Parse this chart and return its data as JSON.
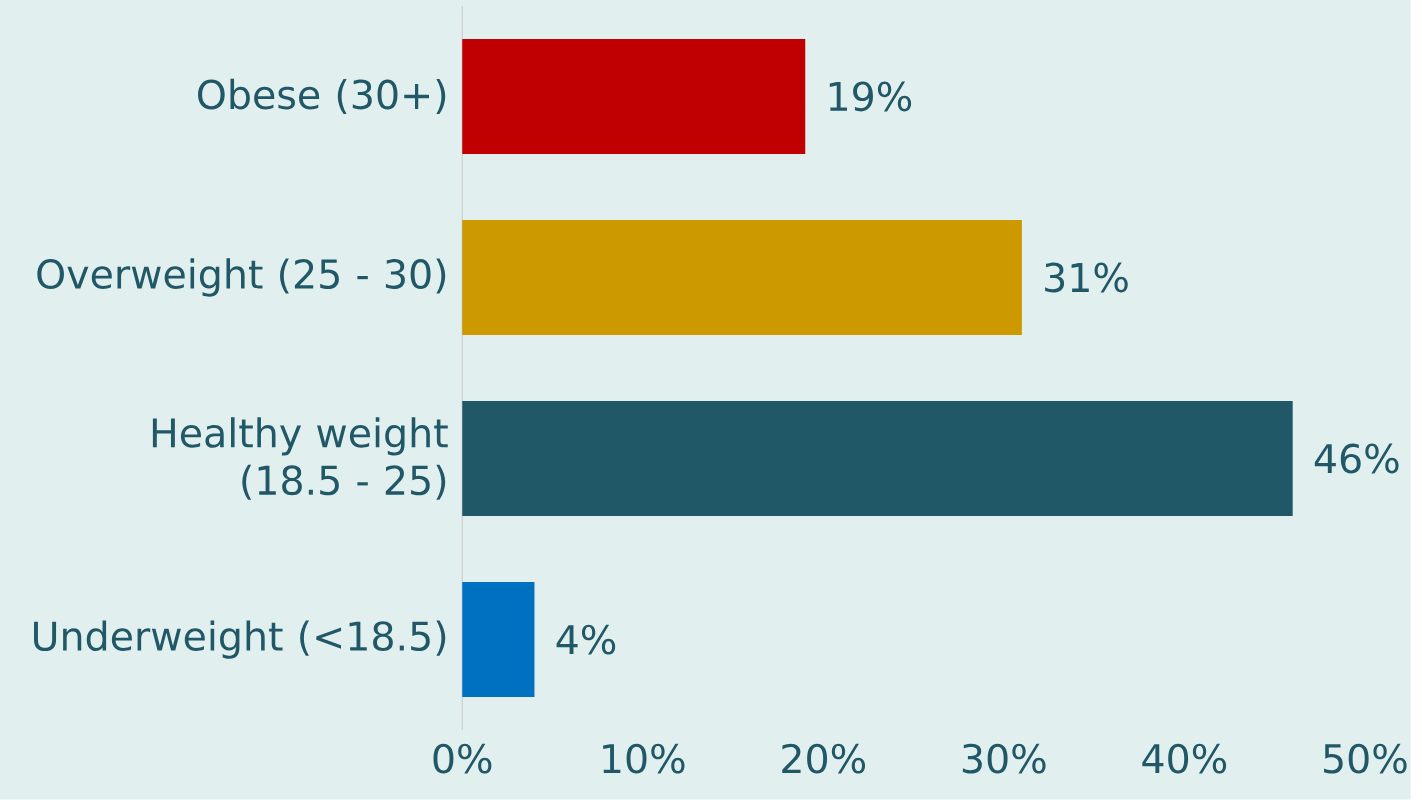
{
  "chart_data": {
    "type": "bar",
    "orientation": "horizontal",
    "categories": [
      "Obese (30+)",
      "Overweight (25 - 30)",
      "Healthy weight (18.5 - 25)",
      "Underweight (<18.5)"
    ],
    "values": [
      19,
      31,
      46,
      4
    ],
    "colors": [
      "#c00000",
      "#cc9900",
      "#215868",
      "#0070c0"
    ],
    "value_labels": [
      "19%",
      "31%",
      "46%",
      "4%"
    ],
    "xlim": [
      0,
      50
    ],
    "xticks": [
      {
        "value": 0,
        "label": "0%"
      },
      {
        "value": 10,
        "label": "10%"
      },
      {
        "value": 20,
        "label": "20%"
      },
      {
        "value": 30,
        "label": "30%"
      },
      {
        "value": 40,
        "label": "40%"
      },
      {
        "value": 50,
        "label": "50%"
      }
    ],
    "grid": false
  }
}
